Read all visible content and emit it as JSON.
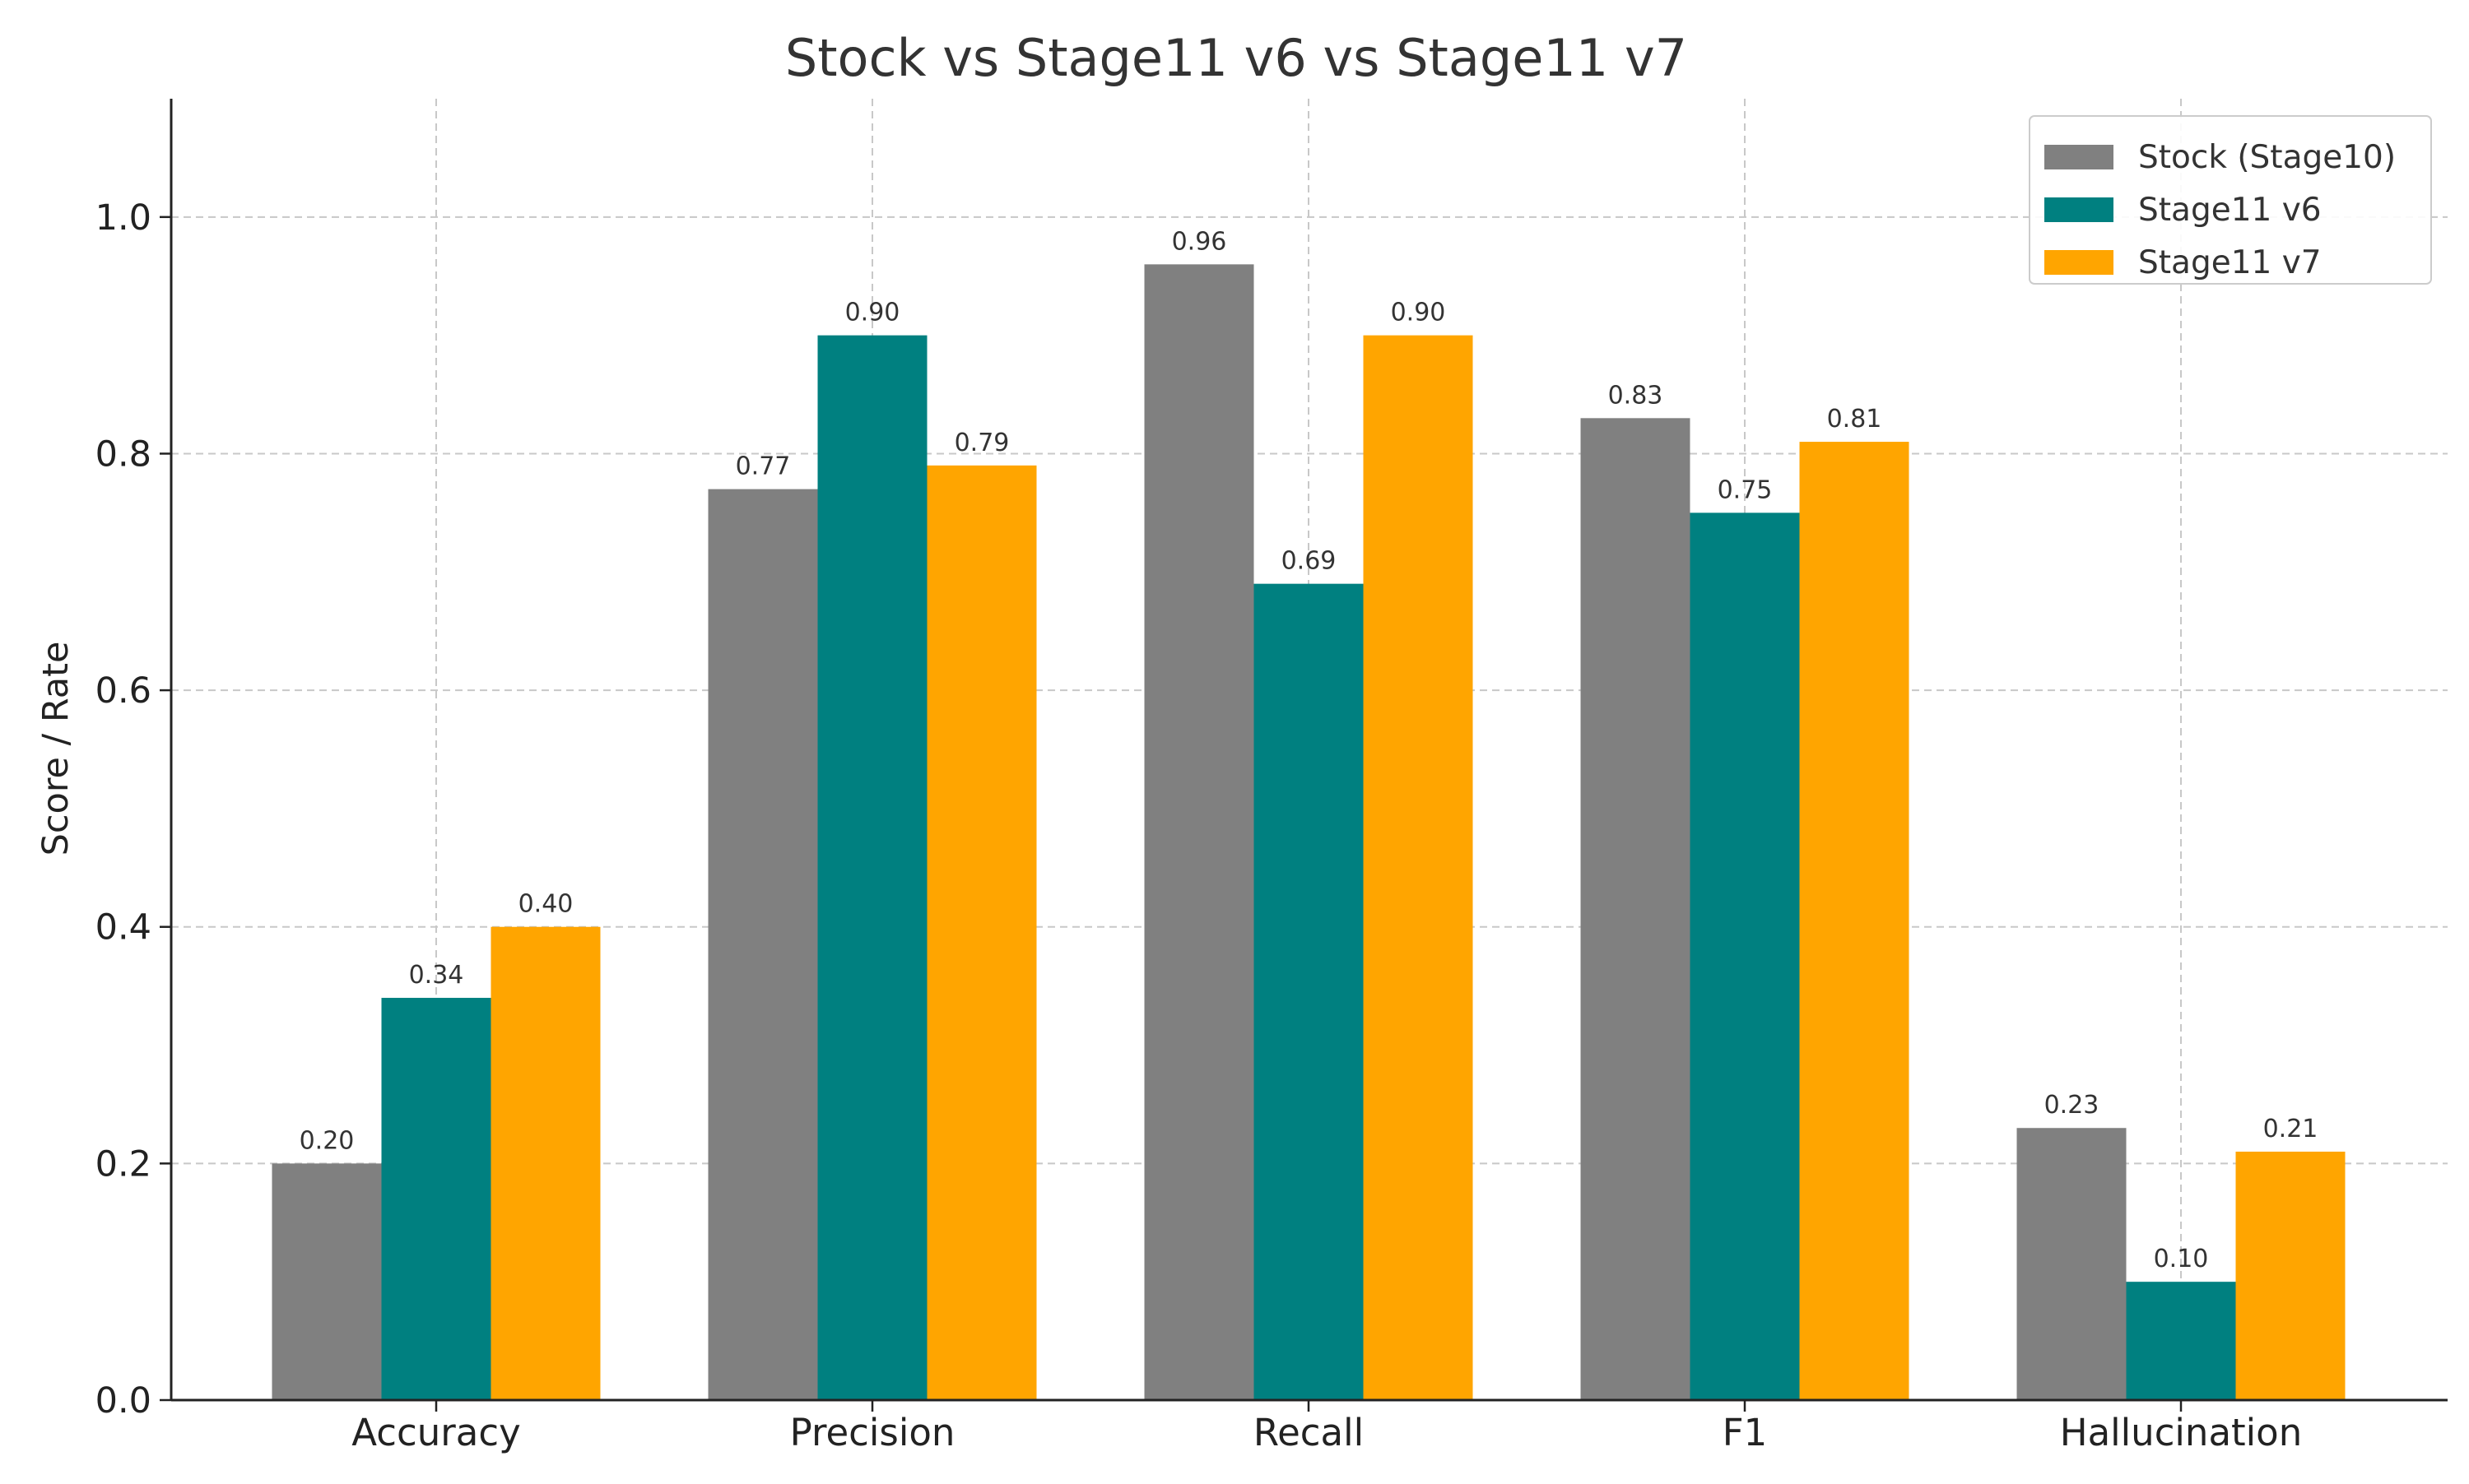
{
  "chart_data": {
    "type": "bar",
    "title": "Stock vs Stage11 v6 vs Stage11 v7",
    "xlabel": "",
    "ylabel": "Score / Rate",
    "categories": [
      "Accuracy",
      "Precision",
      "Recall",
      "F1",
      "Hallucination"
    ],
    "series": [
      {
        "name": "Stock (Stage10)",
        "color": "#808080",
        "values": [
          0.2,
          0.77,
          0.96,
          0.83,
          0.23
        ]
      },
      {
        "name": "Stage11 v6",
        "color": "#008080",
        "values": [
          0.34,
          0.9,
          0.69,
          0.75,
          0.1
        ]
      },
      {
        "name": "Stage11 v7",
        "color": "#FFA500",
        "values": [
          0.4,
          0.79,
          0.9,
          0.81,
          0.21
        ]
      }
    ],
    "ylim": [
      0,
      1.1
    ],
    "yticks": [
      0.0,
      0.2,
      0.4,
      0.6,
      0.8,
      1.0
    ],
    "ytick_labels": [
      "0.0",
      "0.2",
      "0.4",
      "0.6",
      "0.8",
      "1.0"
    ],
    "value_labels": [
      [
        "0.20",
        "0.77",
        "0.96",
        "0.83",
        "0.23"
      ],
      [
        "0.34",
        "0.90",
        "0.69",
        "0.75",
        "0.10"
      ],
      [
        "0.40",
        "0.79",
        "0.90",
        "0.81",
        "0.21"
      ]
    ],
    "grid": true,
    "legend_position": "top-right"
  }
}
